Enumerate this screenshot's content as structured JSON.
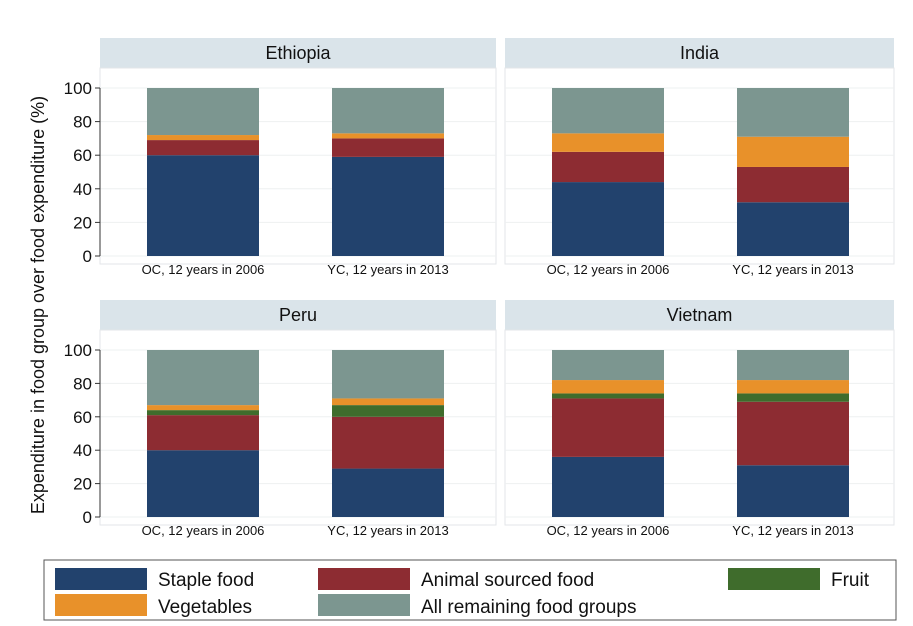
{
  "chart_data": {
    "type": "bar",
    "stacked": true,
    "ylabel": "Expenditure in food group over food expenditure (%)",
    "ylim": [
      0,
      100
    ],
    "yticks": [
      0,
      20,
      40,
      60,
      80,
      100
    ],
    "categories": [
      "OC, 12 years in 2006",
      "YC, 12 years in 2013"
    ],
    "legend": {
      "position": "bottom",
      "entries": [
        {
          "key": "staple",
          "label": "Staple food",
          "color": "#22426d"
        },
        {
          "key": "animal",
          "label": "Animal sourced food",
          "color": "#8d2c32"
        },
        {
          "key": "fruit",
          "label": "Fruit",
          "color": "#3f6c2c"
        },
        {
          "key": "veg",
          "label": "Vegetables",
          "color": "#e8912a"
        },
        {
          "key": "remaining",
          "label": "All remaining food groups",
          "color": "#7c9690"
        }
      ]
    },
    "panels": [
      {
        "title": "Ethiopia",
        "bars": [
          {
            "staple": 60,
            "animal": 9,
            "fruit": 0,
            "veg": 3,
            "remaining": 28
          },
          {
            "staple": 59,
            "animal": 11,
            "fruit": 0,
            "veg": 3,
            "remaining": 27
          }
        ]
      },
      {
        "title": "India",
        "bars": [
          {
            "staple": 44,
            "animal": 18,
            "fruit": 0,
            "veg": 11,
            "remaining": 27
          },
          {
            "staple": 32,
            "animal": 21,
            "fruit": 0,
            "veg": 18,
            "remaining": 29
          }
        ]
      },
      {
        "title": "Peru",
        "bars": [
          {
            "staple": 40,
            "animal": 21,
            "fruit": 3,
            "veg": 3,
            "remaining": 33
          },
          {
            "staple": 29,
            "animal": 31,
            "fruit": 7,
            "veg": 4,
            "remaining": 29
          }
        ]
      },
      {
        "title": "Vietnam",
        "bars": [
          {
            "staple": 36,
            "animal": 35,
            "fruit": 3,
            "veg": 8,
            "remaining": 18
          },
          {
            "staple": 31,
            "animal": 38,
            "fruit": 5,
            "veg": 8,
            "remaining": 18
          }
        ]
      }
    ]
  }
}
